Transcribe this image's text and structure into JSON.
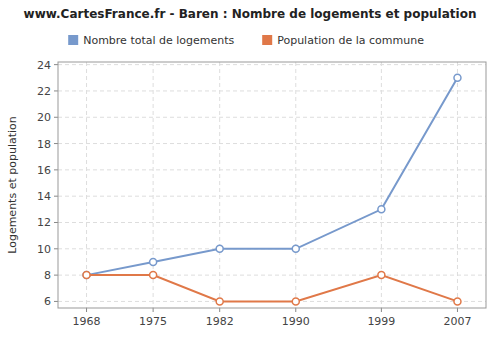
{
  "chart_data": {
    "type": "line",
    "title": "www.CartesFrance.fr - Baren : Nombre de logements et population",
    "y_label": "Logements et population",
    "x": [
      1968,
      1975,
      1982,
      1990,
      1999,
      2007
    ],
    "series": [
      {
        "name": "Nombre total de logements",
        "color": "#7799cc",
        "values": [
          8,
          9,
          10,
          10,
          13,
          23
        ]
      },
      {
        "name": "Population de la commune",
        "color": "#e07848",
        "values": [
          8,
          8,
          6,
          6,
          8,
          6
        ]
      }
    ],
    "xlim": [
      1965,
      2010
    ],
    "xticks": [
      1968,
      1975,
      1982,
      1990,
      1999,
      2007
    ],
    "ylim": [
      5.5,
      24.2
    ],
    "yticks": [
      6,
      8,
      10,
      12,
      14,
      16,
      18,
      20,
      22,
      24
    ],
    "grid": true,
    "legend": "top",
    "marker": "circle"
  }
}
